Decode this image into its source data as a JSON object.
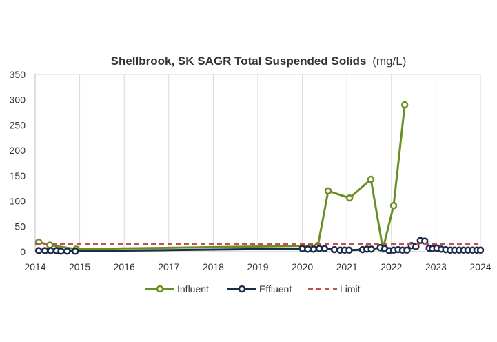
{
  "chart_data": {
    "type": "line",
    "title": "Shellbrook, SK SAGR Total Suspended Solids",
    "title_unit": "(mg/L)",
    "xlabel": "",
    "ylabel": "",
    "xlim": [
      2014,
      2024
    ],
    "ylim": [
      0,
      350
    ],
    "x_ticks": [
      "2014",
      "2015",
      "2016",
      "2017",
      "2018",
      "2019",
      "2020",
      "2021",
      "2022",
      "2023",
      "2024"
    ],
    "y_ticks": [
      "0",
      "50",
      "100",
      "150",
      "200",
      "250",
      "300",
      "350"
    ],
    "grid": "vertical",
    "legend_position": "bottom",
    "series": [
      {
        "name": "Influent",
        "color": "#6b8e23",
        "marker": "circle-open",
        "points": [
          [
            2014.08,
            19
          ],
          [
            2014.33,
            13
          ],
          [
            2014.92,
            5
          ],
          [
            2020.35,
            12
          ],
          [
            2020.58,
            120
          ],
          [
            2021.06,
            106
          ],
          [
            2021.54,
            143
          ],
          [
            2021.81,
            5
          ],
          [
            2022.05,
            91
          ],
          [
            2022.3,
            290
          ]
        ]
      },
      {
        "name": "Effluent",
        "color": "#1c2b4a",
        "marker": "circle-open",
        "points": [
          [
            2014.08,
            2
          ],
          [
            2014.22,
            2
          ],
          [
            2014.35,
            2
          ],
          [
            2014.48,
            2
          ],
          [
            2014.58,
            1
          ],
          [
            2014.72,
            1
          ],
          [
            2014.9,
            1
          ],
          [
            2020.0,
            6
          ],
          [
            2020.12,
            5
          ],
          [
            2020.25,
            5
          ],
          [
            2020.38,
            6
          ],
          [
            2020.5,
            6
          ],
          [
            2020.72,
            4
          ],
          [
            2020.85,
            3
          ],
          [
            2020.95,
            3
          ],
          [
            2021.05,
            3
          ],
          [
            2021.35,
            4
          ],
          [
            2021.45,
            5
          ],
          [
            2021.55,
            5
          ],
          [
            2021.75,
            8
          ],
          [
            2021.85,
            6
          ],
          [
            2021.95,
            2
          ],
          [
            2022.05,
            3
          ],
          [
            2022.15,
            4
          ],
          [
            2022.25,
            3
          ],
          [
            2022.35,
            3
          ],
          [
            2022.45,
            12
          ],
          [
            2022.55,
            10
          ],
          [
            2022.65,
            22
          ],
          [
            2022.75,
            21
          ],
          [
            2022.85,
            7
          ],
          [
            2022.92,
            6
          ],
          [
            2023.02,
            7
          ],
          [
            2023.12,
            5
          ],
          [
            2023.22,
            4
          ],
          [
            2023.32,
            3
          ],
          [
            2023.42,
            3
          ],
          [
            2023.52,
            3
          ],
          [
            2023.62,
            3
          ],
          [
            2023.72,
            3
          ],
          [
            2023.82,
            3
          ],
          [
            2023.92,
            3
          ],
          [
            2024.0,
            3
          ]
        ]
      },
      {
        "name": "Limit",
        "color": "#c0504d",
        "style": "dashed",
        "points": [
          [
            2014.0,
            15
          ],
          [
            2024.0,
            15
          ]
        ]
      }
    ]
  }
}
